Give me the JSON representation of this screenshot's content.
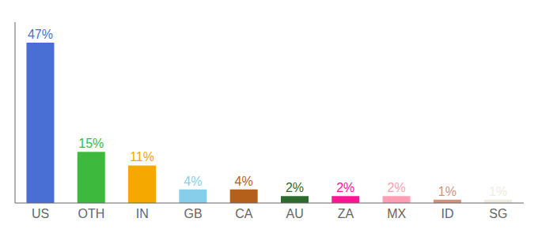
{
  "chart_data": {
    "type": "bar",
    "categories": [
      "US",
      "OTH",
      "IN",
      "GB",
      "CA",
      "AU",
      "ZA",
      "MX",
      "ID",
      "SG"
    ],
    "values": [
      47,
      15,
      11,
      4,
      4,
      2,
      2,
      2,
      1,
      1
    ],
    "value_labels": [
      "47%",
      "15%",
      "11%",
      "4%",
      "4%",
      "2%",
      "2%",
      "2%",
      "1%",
      "1%"
    ],
    "colors": [
      "#4a6fd4",
      "#3dba3d",
      "#f5a800",
      "#87ceeb",
      "#b5601a",
      "#2d6a2d",
      "#ff1493",
      "#ff9eb5",
      "#d2927a",
      "#f0ede0"
    ],
    "ylim": [
      0,
      53
    ],
    "data_labels": true,
    "tick_labels": "x",
    "grid": false
  }
}
